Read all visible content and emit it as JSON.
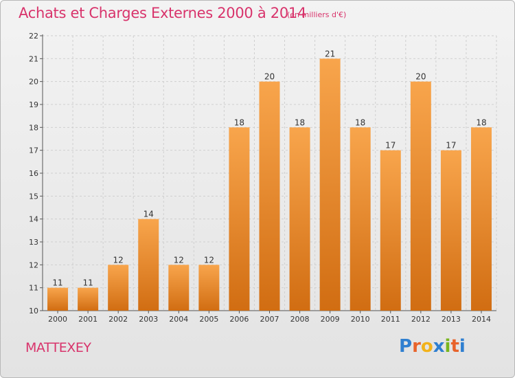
{
  "header": {
    "title": "Achats et Charges Externes 2000 à 2014",
    "unit": "(en milliers d'€)"
  },
  "footer": {
    "commune": "MATTEXEY",
    "logo_text": "Proxiti"
  },
  "colors": {
    "title": "#d8336b",
    "bar_top": "#f8a54c",
    "bar_bottom": "#d16d12",
    "logo": [
      "#2f7fd0",
      "#e8632b",
      "#f2b21b",
      "#2f7fd0",
      "#79b51e",
      "#e8632b",
      "#2f7fd0"
    ]
  },
  "chart_data": {
    "type": "bar",
    "categories": [
      "2000",
      "2001",
      "2002",
      "2003",
      "2004",
      "2005",
      "2006",
      "2007",
      "2008",
      "2009",
      "2010",
      "2011",
      "2012",
      "2013",
      "2014"
    ],
    "values": [
      11,
      11,
      12,
      14,
      12,
      12,
      18,
      20,
      18,
      21,
      18,
      17,
      20,
      17,
      18
    ],
    "title": "Achats et Charges Externes 2000 à 2014",
    "ylim": [
      10,
      22
    ],
    "yticks": [
      10,
      11,
      12,
      13,
      14,
      15,
      16,
      17,
      18,
      19,
      20,
      21,
      22
    ],
    "grid": true,
    "data_labels": true
  }
}
